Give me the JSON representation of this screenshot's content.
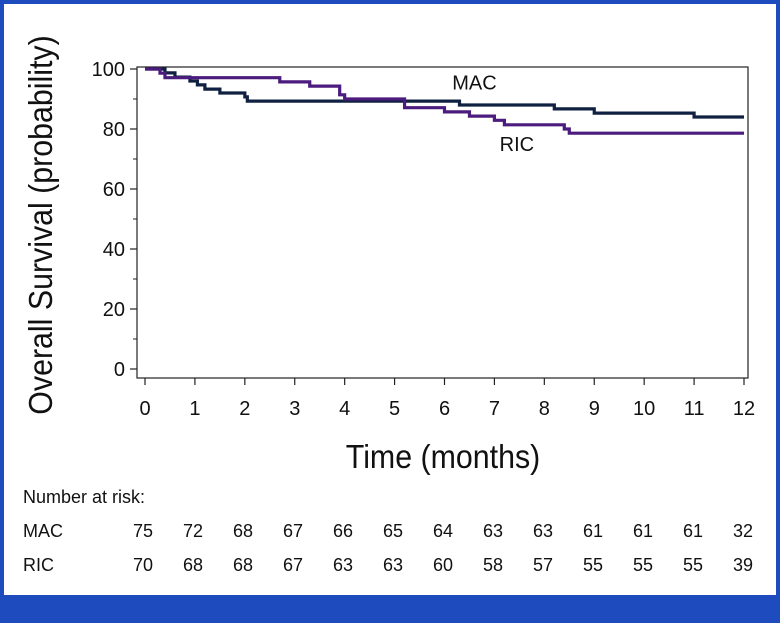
{
  "chart_data": {
    "type": "line",
    "subtype": "kaplan-meier step",
    "xlabel": "Time (months)",
    "ylabel": "Overall Survival (probability)",
    "xlim": [
      0,
      12
    ],
    "ylim": [
      0,
      100
    ],
    "x_ticks": [
      "0",
      "1",
      "2",
      "3",
      "4",
      "5",
      "6",
      "7",
      "8",
      "9",
      "10",
      "11",
      "12"
    ],
    "y_ticks": [
      "0",
      "20",
      "40",
      "60",
      "80",
      "100"
    ],
    "grid": false,
    "series": [
      {
        "name": "MAC",
        "color": "#0f2040",
        "steps": [
          [
            0,
            100
          ],
          [
            0.4,
            98.7
          ],
          [
            0.6,
            97.3
          ],
          [
            0.9,
            96
          ],
          [
            1.05,
            94.7
          ],
          [
            1.2,
            93.3
          ],
          [
            1.5,
            92
          ],
          [
            2.0,
            90.7
          ],
          [
            2.05,
            89.3
          ],
          [
            6.3,
            88
          ],
          [
            8.2,
            86.7
          ],
          [
            9.0,
            85.3
          ],
          [
            11.0,
            84
          ],
          [
            12,
            84
          ]
        ]
      },
      {
        "name": "RIC",
        "color": "#4b1b7e",
        "steps": [
          [
            0,
            100
          ],
          [
            0.3,
            98.6
          ],
          [
            0.4,
            97.1
          ],
          [
            2.7,
            95.7
          ],
          [
            3.3,
            94.3
          ],
          [
            3.9,
            91.4
          ],
          [
            4.0,
            90
          ],
          [
            5.2,
            88.6
          ],
          [
            5.2,
            87.1
          ],
          [
            6.0,
            85.7
          ],
          [
            6.5,
            84.3
          ],
          [
            7.0,
            82.9
          ],
          [
            7.2,
            81.4
          ],
          [
            8.4,
            80
          ],
          [
            8.5,
            78.6
          ],
          [
            12,
            78.6
          ]
        ]
      }
    ],
    "annotations": [
      {
        "text": "MAC",
        "x": 6.6,
        "y": 95.5
      },
      {
        "text": "RIC",
        "x": 7.45,
        "y": 75.0
      }
    ],
    "risk_table": {
      "title": "Number at risk:",
      "rows": [
        {
          "label": "MAC",
          "values": [
            "75",
            "72",
            "68",
            "67",
            "66",
            "65",
            "64",
            "63",
            "63",
            "61",
            "61",
            "61",
            "32"
          ]
        },
        {
          "label": "RIC",
          "values": [
            "70",
            "68",
            "68",
            "67",
            "63",
            "63",
            "60",
            "58",
            "57",
            "55",
            "55",
            "55",
            "39"
          ]
        }
      ]
    }
  }
}
